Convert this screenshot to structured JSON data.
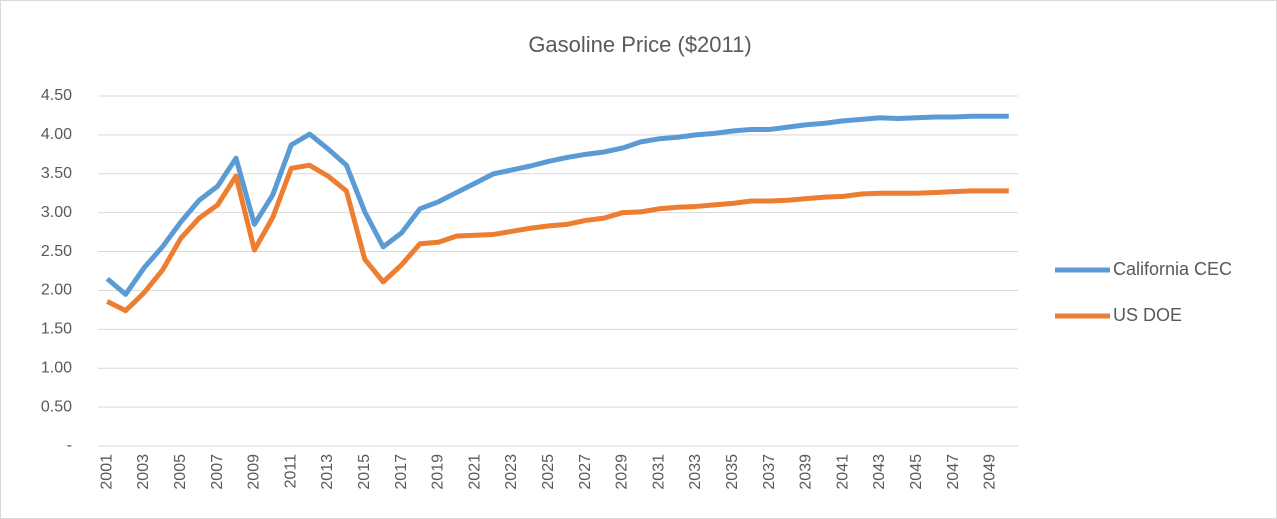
{
  "chart_data": {
    "type": "line",
    "title": "Gasoline Price ($2011)",
    "categories": [
      "2001",
      null,
      "2003",
      null,
      "2005",
      null,
      "2007",
      null,
      "2009",
      null,
      "2011",
      null,
      "2013",
      null,
      "2015",
      null,
      "2017",
      null,
      "2019",
      null,
      "2021",
      null,
      "2023",
      null,
      "2025",
      null,
      "2027",
      null,
      "2029",
      null,
      "2031",
      null,
      "2033",
      null,
      "2035",
      null,
      "2037",
      null,
      "2039",
      null,
      "2041",
      null,
      "2043",
      null,
      "2045",
      null,
      "2047",
      null,
      "2049",
      null
    ],
    "series": [
      {
        "name": "California CEC",
        "color": "#5b9bd5",
        "values": [
          2.15,
          1.95,
          2.29,
          2.56,
          2.88,
          3.16,
          3.34,
          3.7,
          2.85,
          3.23,
          3.87,
          4.01,
          3.82,
          3.61,
          3.01,
          2.56,
          2.74,
          3.05,
          3.14,
          3.26,
          3.38,
          3.5,
          3.55,
          3.6,
          3.66,
          3.71,
          3.75,
          3.78,
          3.83,
          3.91,
          3.95,
          3.97,
          4.0,
          4.02,
          4.05,
          4.07,
          4.07,
          4.1,
          4.13,
          4.15,
          4.18,
          4.2,
          4.22,
          4.21,
          4.22,
          4.23,
          4.23,
          4.24,
          4.24,
          4.24
        ]
      },
      {
        "name": "US DOE",
        "color": "#ed7d31",
        "values": [
          1.86,
          1.74,
          1.97,
          2.26,
          2.67,
          2.93,
          3.1,
          3.47,
          2.52,
          2.94,
          3.57,
          3.61,
          3.47,
          3.28,
          2.4,
          2.11,
          2.33,
          2.6,
          2.62,
          2.7,
          2.71,
          2.72,
          2.76,
          2.8,
          2.83,
          2.85,
          2.9,
          2.93,
          3.0,
          3.01,
          3.05,
          3.07,
          3.08,
          3.1,
          3.12,
          3.15,
          3.15,
          3.16,
          3.18,
          3.2,
          3.21,
          3.24,
          3.25,
          3.25,
          3.25,
          3.26,
          3.27,
          3.28,
          3.28,
          3.28
        ]
      }
    ],
    "ylim": [
      0,
      4.5
    ],
    "yticks": [
      {
        "value": 0,
        "label": "-"
      },
      {
        "value": 0.5,
        "label": "0.50"
      },
      {
        "value": 1,
        "label": "1.00"
      },
      {
        "value": 1.5,
        "label": "1.50"
      },
      {
        "value": 2,
        "label": "2.00"
      },
      {
        "value": 2.5,
        "label": "2.50"
      },
      {
        "value": 3,
        "label": "3.00"
      },
      {
        "value": 3.5,
        "label": "3.50"
      },
      {
        "value": 4,
        "label": "4.00"
      },
      {
        "value": 4.5,
        "label": "4.50"
      }
    ],
    "grid": true,
    "legend": "right"
  }
}
